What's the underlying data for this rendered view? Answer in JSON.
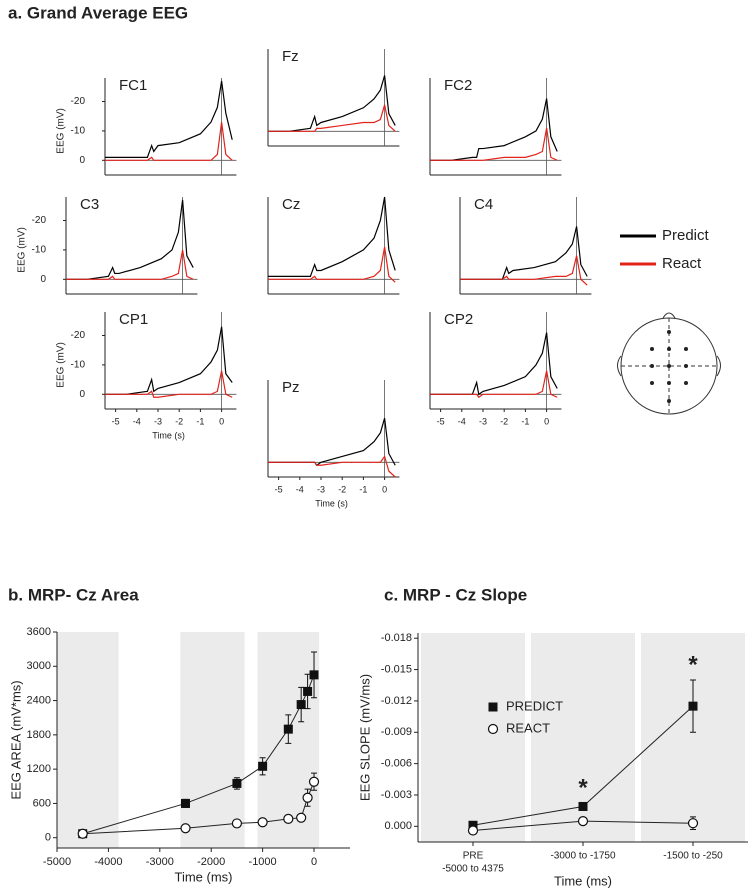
{
  "chart_data": [
    {
      "type": "eeg-grid",
      "title": "a.  Grand Average EEG",
      "x": [
        -5.5,
        -4.5,
        -3.5,
        -3.3,
        -3.2,
        -3,
        -2,
        -1,
        -0.5,
        -0.2,
        0,
        0.2,
        0.5
      ],
      "xlim": [
        -5.5,
        0.7
      ],
      "ylim": [
        5,
        -28
      ],
      "legend": [
        {
          "name": "Predict",
          "color": "#000000"
        },
        {
          "name": "React",
          "color": "#e2231a"
        }
      ],
      "panels": [
        {
          "label": "FC1",
          "ylabel": "EEG (mV)",
          "yticks": [
            0,
            -10,
            -20
          ],
          "series": [
            {
              "values": [
                -1,
                -1,
                -1,
                -5,
                -3,
                -5,
                -6,
                -9,
                -13,
                -18,
                -27,
                -16,
                -7
              ]
            },
            {
              "values": [
                0,
                0,
                0,
                -1,
                0,
                0,
                0,
                0,
                0,
                -2,
                -13,
                -2,
                0
              ]
            }
          ]
        },
        {
          "label": "Fz",
          "series": [
            {
              "values": [
                0,
                0,
                -1,
                -5,
                -2,
                -3,
                -5,
                -8,
                -11,
                -14,
                -19,
                -6,
                -2
              ]
            },
            {
              "values": [
                0,
                0,
                0,
                0,
                -1,
                -1,
                -2,
                -3,
                -3,
                -4,
                -9,
                -2,
                0
              ]
            }
          ]
        },
        {
          "label": "FC2",
          "series": [
            {
              "values": [
                0,
                0,
                -1,
                -1,
                -4,
                -4,
                -5,
                -8,
                -10,
                -14,
                -21,
                -8,
                -3
              ]
            },
            {
              "values": [
                0,
                0,
                0,
                0,
                0,
                0,
                -1,
                -1,
                -2,
                -3,
                -11,
                -1,
                0
              ]
            }
          ]
        },
        {
          "label": "C3",
          "ylabel": "EEG (mV)",
          "yticks": [
            0,
            -10,
            -20
          ],
          "series": [
            {
              "values": [
                0,
                0,
                -1,
                -4,
                -2,
                -2,
                -4,
                -7,
                -10,
                -16,
                -27,
                -8,
                -4
              ]
            },
            {
              "values": [
                0,
                0,
                0,
                -1,
                0,
                0,
                0,
                0,
                -1,
                -2,
                -10,
                -1,
                0
              ]
            }
          ]
        },
        {
          "label": "Cz",
          "series": [
            {
              "values": [
                -1,
                -1,
                -1,
                -5,
                -3,
                -3,
                -6,
                -10,
                -14,
                -20,
                -28,
                -10,
                -3
              ]
            },
            {
              "values": [
                0,
                0,
                0,
                -1,
                0,
                0,
                0,
                0,
                -1,
                -3,
                -11,
                -1,
                1
              ]
            }
          ]
        },
        {
          "label": "C4",
          "series": [
            {
              "values": [
                0,
                0,
                0,
                -4,
                -2,
                -3,
                -4,
                -6,
                -9,
                -12,
                -18,
                -5,
                -1
              ]
            },
            {
              "values": [
                0,
                0,
                0,
                -1,
                0,
                0,
                0,
                -1,
                -1,
                -2,
                -8,
                0,
                2
              ]
            }
          ]
        },
        {
          "label": "CP1",
          "ylabel": "EEG (mV)",
          "yticks": [
            0,
            -10,
            -20
          ],
          "xticks": [
            -5,
            -4,
            -3,
            -2,
            -1,
            0
          ],
          "xlabel": "Time (s)",
          "series": [
            {
              "values": [
                0,
                0,
                -1,
                -5,
                -1,
                -2,
                -4,
                -7,
                -11,
                -15,
                -23,
                -7,
                -4
              ]
            },
            {
              "values": [
                0,
                0,
                0,
                -1,
                1,
                1,
                0,
                0,
                0,
                -1,
                -8,
                0,
                1
              ]
            }
          ]
        },
        {
          "label": "Pz",
          "xticks": [
            -5,
            -4,
            -3,
            -2,
            -1,
            0
          ],
          "xlabel": "Time (s)",
          "series": [
            {
              "values": [
                0,
                0,
                0,
                0,
                1,
                0,
                -2,
                -4,
                -7,
                -10,
                -15,
                -3,
                1
              ]
            },
            {
              "values": [
                0,
                0,
                0,
                0,
                1,
                1,
                0,
                0,
                0,
                0,
                -2,
                3,
                5
              ]
            }
          ]
        },
        {
          "label": "CP2",
          "xticks": [
            -5,
            -4,
            -3,
            -2,
            -1,
            0
          ],
          "series": [
            {
              "values": [
                0,
                0,
                0,
                -4,
                0,
                -1,
                -3,
                -6,
                -10,
                -14,
                -21,
                -6,
                -2
              ]
            },
            {
              "values": [
                0,
                0,
                0,
                0,
                1,
                0,
                0,
                0,
                0,
                -1,
                -8,
                0,
                1
              ]
            }
          ]
        }
      ]
    },
    {
      "type": "line",
      "title": "b.  MRP- Cz Area",
      "xlabel": "Time (ms)",
      "ylabel": "EEG AREA (mV*ms)",
      "xlim": [
        -5000,
        700
      ],
      "ylim": [
        -180,
        3600
      ],
      "xticks": [
        -5000,
        -4000,
        -3000,
        -2000,
        -1000,
        0
      ],
      "yticks": [
        0,
        600,
        1200,
        1800,
        2400,
        3000,
        3600
      ],
      "bands": [
        [
          -5000,
          -3800
        ],
        [
          -2600,
          -1350
        ],
        [
          -1100,
          100
        ]
      ],
      "x": [
        -4500,
        -2500,
        -1500,
        -1000,
        -500,
        -250,
        -125,
        0
      ],
      "series": [
        {
          "marker": "square",
          "values": [
            70,
            600,
            950,
            1250,
            1900,
            2330,
            2560,
            2850
          ],
          "errors": [
            50,
            70,
            100,
            150,
            250,
            300,
            300,
            400
          ]
        },
        {
          "marker": "circle",
          "values": [
            70,
            165,
            250,
            270,
            330,
            350,
            700,
            980
          ],
          "errors": [
            40,
            30,
            30,
            40,
            40,
            50,
            150,
            150
          ]
        }
      ]
    },
    {
      "type": "category-line",
      "title": "c.  MRP - Cz Slope",
      "xlabel": "Time (ms)",
      "ylabel": "EEG SLOPE (mV/ms)",
      "ylim": [
        0.0015,
        -0.0185
      ],
      "yticks": [
        {
          "value": 0,
          "label": "0.000"
        },
        -0.003,
        -0.006,
        -0.009,
        -0.012,
        -0.015,
        -0.018
      ],
      "categories": [
        [
          "PRE",
          "-5000 to 4375"
        ],
        "-3000 to -1750",
        "-1500 to -250"
      ],
      "annotations": [
        "*",
        "*"
      ],
      "series": [
        {
          "name": "PREDICT",
          "marker": "square",
          "values": [
            -0.0001,
            -0.0019,
            -0.0115
          ],
          "errors": [
            0.0002,
            0.0003,
            0.0025
          ]
        },
        {
          "name": "REACT",
          "marker": "circle",
          "values": [
            0.0004,
            -0.0005,
            -0.0003
          ],
          "errors": [
            0.0002,
            0.0002,
            0.0006
          ]
        }
      ]
    }
  ]
}
